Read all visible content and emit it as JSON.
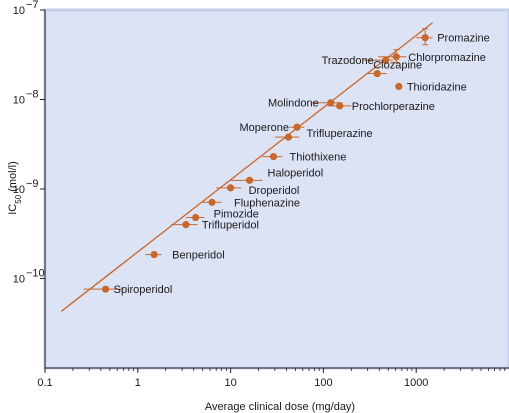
{
  "chart_data": {
    "type": "scatter",
    "title": "",
    "xlabel": "Average clinical dose (mg/day)",
    "ylabel_main": "IC",
    "ylabel_sub": "50",
    "ylabel_unit": " (mol/l)",
    "x_scale": "log",
    "y_scale": "log",
    "xlim": [
      0.1,
      10000
    ],
    "ylim": [
      1e-11,
      1e-07
    ],
    "x_tick_values": [
      0.1,
      1,
      10,
      100,
      1000
    ],
    "x_tick_labels": [
      "0.1",
      "1",
      "10",
      "100",
      "1000"
    ],
    "y_tick_values": [
      1e-10,
      1e-09,
      1e-08,
      1e-07
    ],
    "y_tick_mantissa": [
      "10",
      "10",
      "10",
      "10"
    ],
    "y_tick_exponent": [
      "−10",
      "−9",
      "−8",
      "−7"
    ],
    "grid": false,
    "colors": {
      "plot_background": "#dce3f5",
      "plot_border": "#c5cfea",
      "marker": "#c8672b",
      "fit_line": "#c8672b",
      "axis": "#222222"
    },
    "fit_line": {
      "x": [
        0.15,
        1500
      ],
      "y": [
        4.3e-11,
        7.2e-08
      ]
    },
    "points": [
      {
        "name": "Spiroperidol",
        "x": 0.45,
        "y": 7.6e-11,
        "xerr_low": 0.26,
        "xerr_high": 0.7
      },
      {
        "name": "Benperidol",
        "x": 1.5,
        "y": 1.85e-10,
        "xerr_low": 1.2,
        "xerr_high": 1.8
      },
      {
        "name": "Trifluperidol",
        "x": 3.3,
        "y": 4e-10,
        "xerr_low": 2.3,
        "xerr_high": 4.4
      },
      {
        "name": "Pimozide",
        "x": 4.2,
        "y": 4.8e-10,
        "xerr_low": 3.3,
        "xerr_high": 5.2
      },
      {
        "name": "Fluphenazine",
        "x": 6.3,
        "y": 7.1e-10,
        "xerr_low": 5.0,
        "xerr_high": 8.0
      },
      {
        "name": "Droperidol",
        "x": 10,
        "y": 1.03e-09,
        "xerr_low": 7.0,
        "xerr_high": 13
      },
      {
        "name": "Haloperidol",
        "x": 16,
        "y": 1.25e-09,
        "xerr_low": 10,
        "xerr_high": 22
      },
      {
        "name": "Thiothixene",
        "x": 29,
        "y": 2.3e-09,
        "xerr_low": 22,
        "xerr_high": 36
      },
      {
        "name": "Trifluperazine",
        "x": 42,
        "y": 3.8e-09,
        "xerr_low": 30,
        "xerr_high": 55
      },
      {
        "name": "Moperone",
        "x": 52,
        "y": 4.9e-09,
        "xerr_low": 43,
        "xerr_high": 62
      },
      {
        "name": "Molindone",
        "x": 120,
        "y": 9.2e-09,
        "xerr_low": 75,
        "xerr_high": 160
      },
      {
        "name": "Prochlorperazine",
        "x": 150,
        "y": 8.5e-09,
        "xerr_low": 110,
        "xerr_high": 200
      },
      {
        "name": "Clozapine",
        "x": 380,
        "y": 1.95e-08,
        "xerr_low": 290,
        "xerr_high": 480
      },
      {
        "name": "Thioridazine",
        "x": 650,
        "y": 1.4e-08
      },
      {
        "name": "Trazodone",
        "x": 470,
        "y": 2.75e-08,
        "xerr_low": 270,
        "xerr_high": 560
      },
      {
        "name": "Chlorpromazine",
        "x": 610,
        "y": 3e-08,
        "xerr_low": 390,
        "xerr_high": 780,
        "yerr_low": 2.6e-08,
        "yerr_high": 3.6e-08
      },
      {
        "name": "Promazine",
        "x": 1250,
        "y": 4.9e-08,
        "xerr_low": 1000,
        "xerr_high": 1500,
        "yerr_low": 4.1e-08,
        "yerr_high": 6.2e-08
      }
    ]
  }
}
